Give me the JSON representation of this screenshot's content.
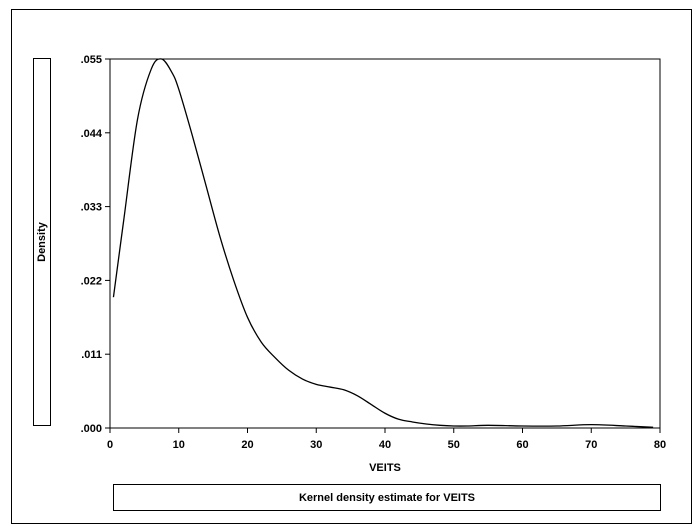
{
  "chart_data": {
    "type": "line",
    "title": "",
    "caption": "Kernel density estimate for VEITS",
    "xlabel": "VEITS",
    "ylabel": "Density",
    "xlim": [
      0,
      80
    ],
    "ylim": [
      0,
      0.055
    ],
    "x_ticks": [
      0,
      10,
      20,
      30,
      40,
      50,
      60,
      70,
      80
    ],
    "x_tick_labels": [
      "0",
      "10",
      "20",
      "30",
      "40",
      "50",
      "60",
      "70",
      "80"
    ],
    "y_ticks": [
      0,
      0.011,
      0.022,
      0.033,
      0.044,
      0.055
    ],
    "y_tick_labels": [
      ".000",
      ".011",
      ".022",
      ".033",
      ".044",
      ".055"
    ],
    "grid": false,
    "series": [
      {
        "x": [
          0.5,
          2,
          4,
          6,
          7.5,
          9,
          10,
          12,
          14,
          16,
          18,
          20,
          22,
          24,
          26,
          28,
          30,
          32,
          34,
          36,
          38,
          40,
          42,
          44,
          46,
          48,
          50,
          52,
          55,
          60,
          65,
          70,
          75,
          79
        ],
        "y": [
          0.0195,
          0.031,
          0.046,
          0.0535,
          0.055,
          0.053,
          0.0505,
          0.0435,
          0.036,
          0.0285,
          0.022,
          0.0165,
          0.0128,
          0.0105,
          0.0086,
          0.0073,
          0.0065,
          0.0061,
          0.0057,
          0.0048,
          0.0035,
          0.0022,
          0.0013,
          0.0009,
          0.0006,
          0.0004,
          0.0003,
          0.0003,
          0.0004,
          0.0003,
          0.0003,
          0.0005,
          0.0003,
          0.0001
        ]
      }
    ]
  }
}
